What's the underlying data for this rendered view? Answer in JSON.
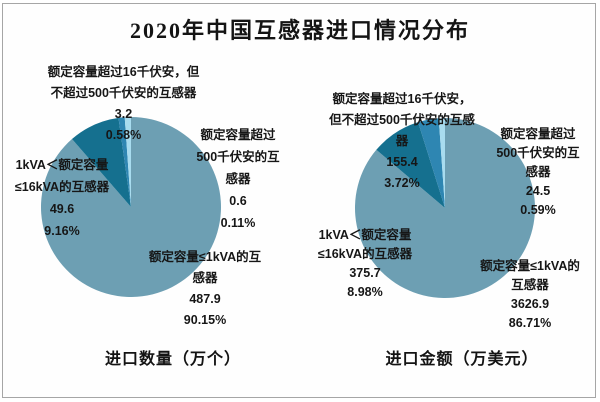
{
  "title": "2020年中国互感器进口情况分布",
  "colors": {
    "slice_le1kva": "#6D9FB3",
    "slice_1to16kva": "#15708F",
    "slice_16to500kva": "#2E86B2",
    "slice_gt500kva": "#A8DCEF",
    "frame_border": "#A6A6A6",
    "text": "#161616",
    "background": "#FFFFFF"
  },
  "charts": [
    {
      "name": "进口数量",
      "caption": "进口数量（万个）",
      "labels": {
        "cat3": {
          "lines": [
            "额定容量超过16千伏安，但",
            "不超过500千伏安的互感器",
            "3.2",
            "0.58%"
          ]
        },
        "cat4": {
          "lines": [
            "额定容量超过",
            "500千伏安的互",
            "感器",
            "0.6",
            "0.11%"
          ]
        },
        "cat2": {
          "lines": [
            "1kVA＜额定容量",
            "≤16kVA的互感器",
            "49.6",
            "9.16%"
          ]
        },
        "cat1": {
          "lines": [
            "额定容量≤1kVA的互",
            "感器",
            "487.9",
            "90.15%"
          ]
        }
      }
    },
    {
      "name": "进口金额",
      "caption": "进口金额（万美元）",
      "labels": {
        "cat3": {
          "lines": [
            "额定容量超过16千伏安，",
            "但不超过500千伏安的互感",
            "器",
            "155.4",
            "3.72%"
          ]
        },
        "cat4": {
          "lines": [
            "额定容量超过",
            "500千伏安的互",
            "感器",
            "24.5",
            "0.59%"
          ]
        },
        "cat2": {
          "lines": [
            "1kVA＜额定容量",
            "≤16kVA的互感器",
            "375.7",
            "8.98%"
          ]
        },
        "cat1": {
          "lines": [
            "额定容量≤1kVA的",
            "互感器",
            "3626.9",
            "86.71%"
          ]
        }
      }
    }
  ],
  "chart_data": [
    {
      "type": "pie",
      "title": "进口数量（万个）",
      "unit": "万个",
      "start_angle_deg": 0,
      "direction": "clockwise",
      "legend": "none",
      "slices": [
        {
          "key": "le1kva",
          "label": "额定容量≤1kVA的互感器",
          "value": 487.9,
          "percent": 90.15,
          "color": "#6D9FB3"
        },
        {
          "key": "1to16kva",
          "label": "1kVA＜额定容量≤16kVA的互感器",
          "value": 49.6,
          "percent": 9.16,
          "color": "#15708F"
        },
        {
          "key": "16to500kva",
          "label": "额定容量超过16千伏安，但不超过500千伏安的互感器",
          "value": 3.2,
          "percent": 0.58,
          "color": "#2E86B2"
        },
        {
          "key": "gt500kva",
          "label": "额定容量超过500千伏安的互感器",
          "value": 0.6,
          "percent": 0.11,
          "color": "#A8DCEF"
        }
      ]
    },
    {
      "type": "pie",
      "title": "进口金额（万美元）",
      "unit": "万美元",
      "start_angle_deg": 0,
      "direction": "clockwise",
      "legend": "none",
      "slices": [
        {
          "key": "le1kva",
          "label": "额定容量≤1kVA的互感器",
          "value": 3626.9,
          "percent": 86.71,
          "color": "#6D9FB3"
        },
        {
          "key": "1to16kva",
          "label": "1kVA＜额定容量≤16kVA的互感器",
          "value": 375.7,
          "percent": 8.98,
          "color": "#15708F"
        },
        {
          "key": "16to500kva",
          "label": "额定容量超过16千伏安，但不超过500千伏安的互感器",
          "value": 155.4,
          "percent": 3.72,
          "color": "#2E86B2"
        },
        {
          "key": "gt500kva",
          "label": "额定容量超过500千伏安的互感器",
          "value": 24.5,
          "percent": 0.59,
          "color": "#A8DCEF"
        }
      ]
    }
  ]
}
